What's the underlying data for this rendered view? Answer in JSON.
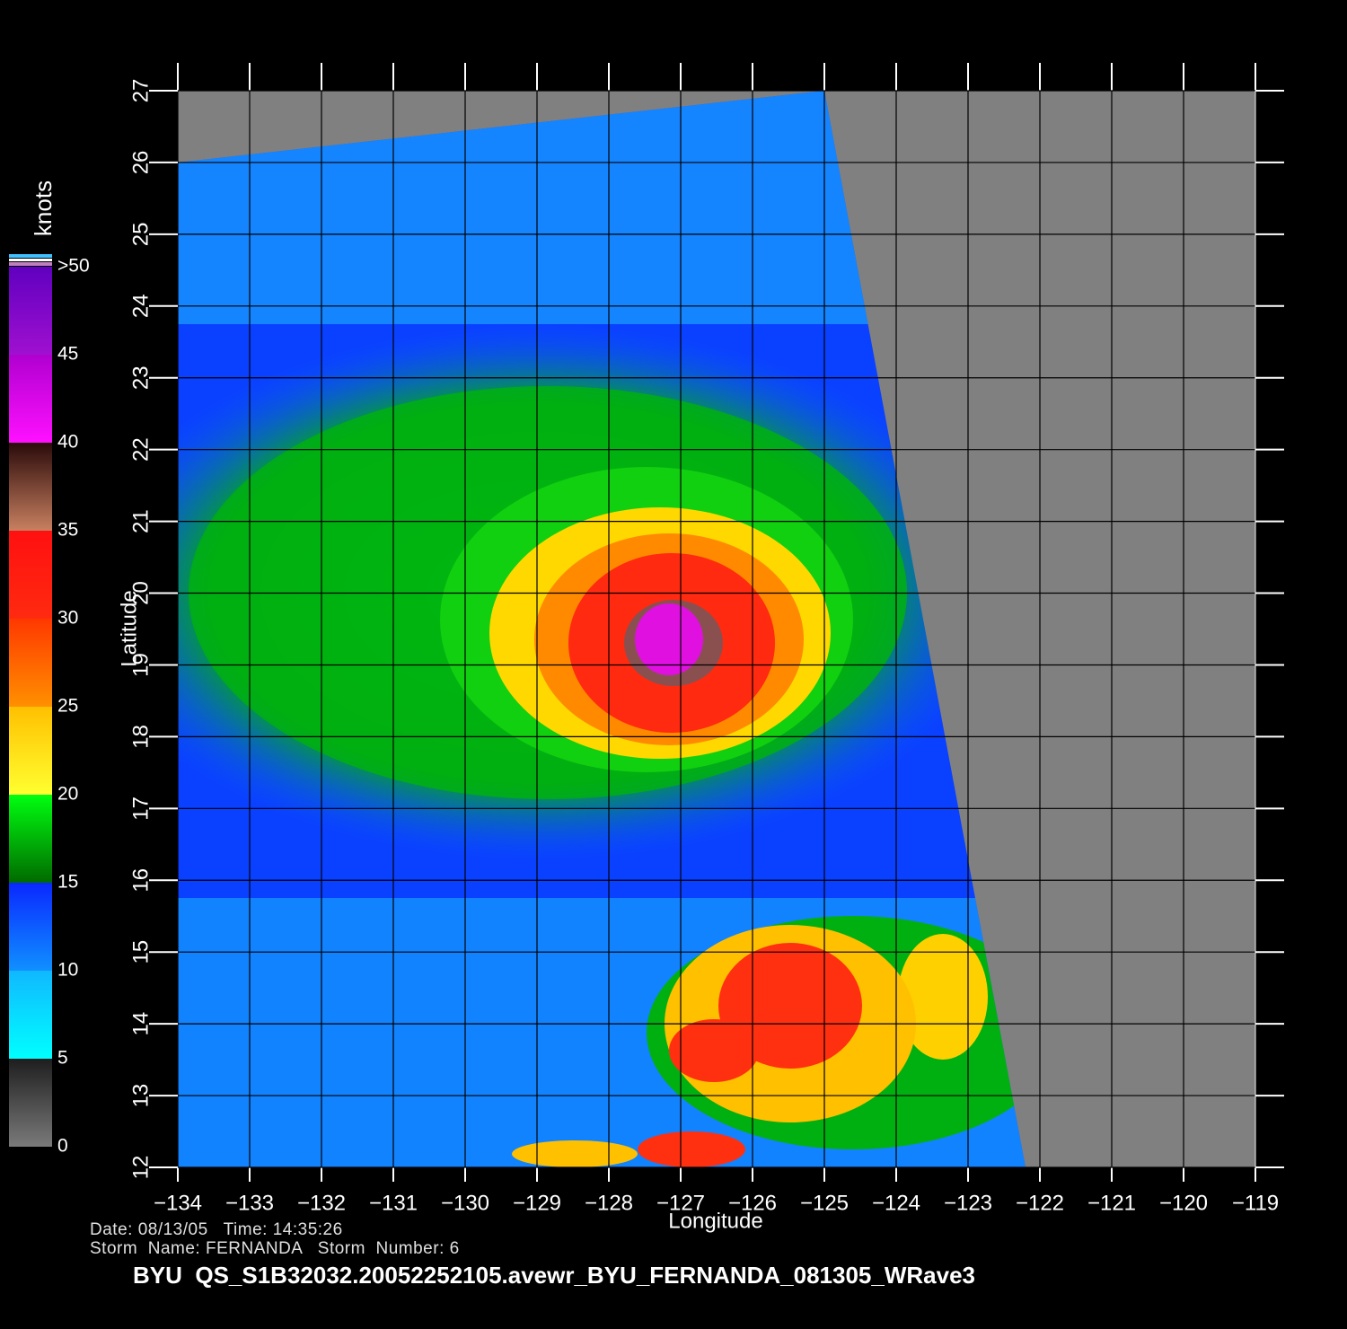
{
  "map": {
    "type": "wind-map",
    "x_label": "Longitude",
    "y_label": "Latitude",
    "xlim": [
      -134,
      -119
    ],
    "ylim": [
      12,
      27
    ],
    "xticks": [
      {
        "value": -134,
        "label": "−134"
      },
      {
        "value": -133,
        "label": "−133"
      },
      {
        "value": -132,
        "label": "−132"
      },
      {
        "value": -131,
        "label": "−131"
      },
      {
        "value": -130,
        "label": "−130"
      },
      {
        "value": -129,
        "label": "−129"
      },
      {
        "value": -128,
        "label": "−128"
      },
      {
        "value": -127,
        "label": "−127"
      },
      {
        "value": -126,
        "label": "−126"
      },
      {
        "value": -125,
        "label": "−125"
      },
      {
        "value": -124,
        "label": "−124"
      },
      {
        "value": -123,
        "label": "−123"
      },
      {
        "value": -122,
        "label": "−122"
      },
      {
        "value": -121,
        "label": "−121"
      },
      {
        "value": -120,
        "label": "−120"
      },
      {
        "value": -119,
        "label": "−119"
      }
    ],
    "yticks": [
      12,
      13,
      14,
      15,
      16,
      17,
      18,
      19,
      20,
      21,
      22,
      23,
      24,
      25,
      26,
      27
    ],
    "grid": true,
    "background": "#808080"
  },
  "colorbar": {
    "label": "knots",
    "range": [
      0,
      50
    ],
    "ticks": [
      0,
      5,
      10,
      15,
      20,
      25,
      30,
      35,
      40,
      45,
      {
        "value": 50,
        "label": ">50"
      }
    ],
    "band_colors": [
      [
        "#7a7a7a",
        "#1e1e1e"
      ],
      [
        "#00ffff",
        "#10b8ff"
      ],
      [
        "#1090ff",
        "#0a28ff"
      ],
      [
        "#006a00",
        "#00ff10"
      ],
      [
        "#ffff30",
        "#ffc000"
      ],
      [
        "#ff9000",
        "#ff3800"
      ],
      [
        "#ff2a10",
        "#ff1010"
      ],
      [
        "#c88060",
        "#2a0a0a"
      ],
      [
        "#ff10ff",
        "#b000d0"
      ],
      [
        "#a010d0",
        "#6000c0"
      ]
    ]
  },
  "footer": {
    "line1": "Date: 08/13/05   Time: 14:35:26",
    "line2": "Storm  Name: FERNANDA   Storm  Number: 6",
    "title": "BYU  QS_S1B32032.20052252105.avewr_BYU_FERNANDA_081305_WRave3"
  }
}
